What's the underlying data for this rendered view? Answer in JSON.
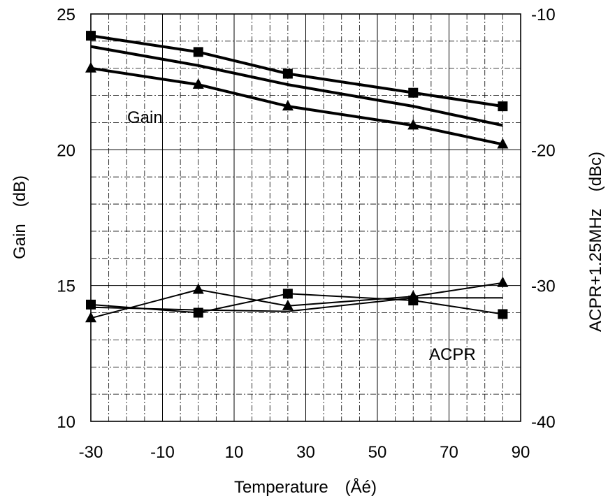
{
  "chart_data": {
    "type": "line",
    "title": "",
    "xlabel": "Temperature　(Åé)",
    "ylabel": "Gain　(dB)",
    "y2label": "ACPR+1.25MHz　(dBc)",
    "xlim": [
      -30,
      90
    ],
    "ylim": [
      10,
      25
    ],
    "y2lim": [
      -40,
      -10
    ],
    "x_ticks": [
      -30,
      -10,
      10,
      30,
      50,
      70,
      90
    ],
    "y_ticks": [
      10,
      15,
      20,
      25
    ],
    "y2_ticks": [
      -40,
      -30,
      -20,
      -10
    ],
    "grid": true,
    "x_minor_step": 5,
    "y_minor_step": 1,
    "annotations": [
      "Gain",
      "ACPR"
    ],
    "series": [
      {
        "group": "gain",
        "axis": "left",
        "marker": "square",
        "thick": true,
        "x": [
          -30,
          0,
          25,
          60,
          85
        ],
        "values": [
          24.2,
          23.6,
          22.8,
          22.1,
          21.6
        ]
      },
      {
        "group": "gain",
        "axis": "left",
        "marker": "none",
        "thick": true,
        "x": [
          -30,
          0,
          25,
          60,
          85
        ],
        "values": [
          23.8,
          23.1,
          22.4,
          21.6,
          20.9
        ]
      },
      {
        "group": "gain",
        "axis": "left",
        "marker": "triangle",
        "thick": true,
        "x": [
          -30,
          0,
          25,
          60,
          85
        ],
        "values": [
          23.0,
          22.4,
          21.6,
          20.9,
          20.2
        ]
      },
      {
        "group": "acpr",
        "axis": "right",
        "marker": "square",
        "thick": false,
        "x": [
          -30,
          0,
          25,
          60,
          85
        ],
        "values": [
          -31.4,
          -32.0,
          -30.6,
          -31.1,
          -32.1
        ]
      },
      {
        "group": "acpr",
        "axis": "right",
        "marker": "none",
        "thick": false,
        "x": [
          -30,
          0,
          25,
          60,
          85
        ],
        "values": [
          -31.6,
          -31.8,
          -31.9,
          -30.9,
          -30.9
        ]
      },
      {
        "group": "acpr",
        "axis": "right",
        "marker": "triangle",
        "thick": false,
        "x": [
          -30,
          0,
          25,
          60,
          85
        ],
        "values": [
          -32.4,
          -30.3,
          -31.5,
          -30.8,
          -29.8
        ]
      }
    ]
  }
}
